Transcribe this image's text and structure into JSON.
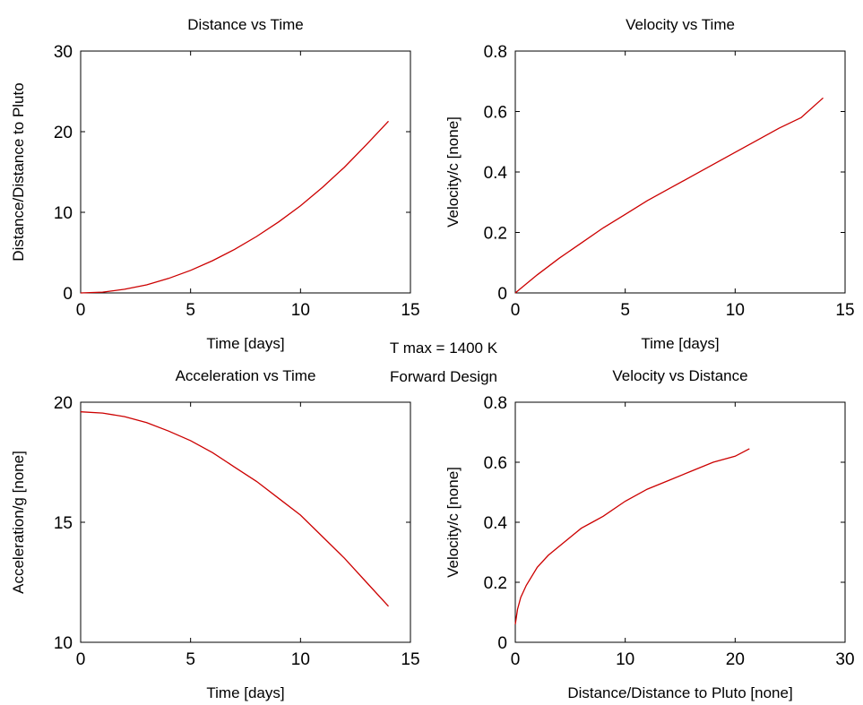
{
  "figure": {
    "suptitle_lines": [
      "T max = 1400 K",
      "Forward Design"
    ],
    "line_color": "#cc0000"
  },
  "chart_data": [
    {
      "type": "line",
      "title": "Distance vs Time",
      "xlabel": "Time [days]",
      "ylabel": "Distance/Distance to Pluto",
      "xlim": [
        0,
        15
      ],
      "ylim": [
        0,
        30
      ],
      "xticks": [
        0,
        5,
        10,
        15
      ],
      "yticks": [
        0,
        10,
        20,
        30
      ],
      "grid": false,
      "x": [
        0,
        1,
        2,
        3,
        4,
        5,
        6,
        7,
        8,
        9,
        10,
        11,
        12,
        13,
        14
      ],
      "y": [
        0,
        0.1,
        0.45,
        1.0,
        1.8,
        2.8,
        4.0,
        5.4,
        7.0,
        8.8,
        10.8,
        13.1,
        15.6,
        18.4,
        21.3
      ]
    },
    {
      "type": "line",
      "title": "Velocity vs Time",
      "xlabel": "Time [days]",
      "ylabel": "Velocity/c [none]",
      "xlim": [
        0,
        15
      ],
      "ylim": [
        0,
        0.8
      ],
      "xticks": [
        0,
        5,
        10,
        15
      ],
      "yticks": [
        0,
        0.2,
        0.4,
        0.6,
        0.8
      ],
      "grid": false,
      "x": [
        0,
        1,
        2,
        3,
        4,
        5,
        6,
        7,
        8,
        9,
        10,
        11,
        12,
        13,
        14
      ],
      "y": [
        0,
        0.06,
        0.115,
        0.165,
        0.215,
        0.26,
        0.305,
        0.345,
        0.385,
        0.425,
        0.465,
        0.505,
        0.545,
        0.58,
        0.645
      ]
    },
    {
      "type": "line",
      "title": "Acceleration vs Time",
      "xlabel": "Time [days]",
      "ylabel": "Acceleration/g [none]",
      "xlim": [
        0,
        15
      ],
      "ylim": [
        10,
        20
      ],
      "xticks": [
        0,
        5,
        10,
        15
      ],
      "yticks": [
        10,
        15,
        20
      ],
      "grid": false,
      "x": [
        0,
        1,
        2,
        3,
        4,
        5,
        6,
        7,
        8,
        9,
        10,
        11,
        12,
        13,
        14
      ],
      "y": [
        19.6,
        19.55,
        19.4,
        19.15,
        18.8,
        18.4,
        17.9,
        17.3,
        16.7,
        16.0,
        15.3,
        14.4,
        13.5,
        12.5,
        11.5
      ]
    },
    {
      "type": "line",
      "title": "Velocity vs Distance",
      "xlabel": "Distance/Distance to Pluto [none]",
      "ylabel": "Velocity/c [none]",
      "xlim": [
        0,
        30
      ],
      "ylim": [
        0,
        0.8
      ],
      "xticks": [
        0,
        10,
        20,
        30
      ],
      "yticks": [
        0,
        0.2,
        0.4,
        0.6,
        0.8
      ],
      "grid": false,
      "x": [
        0,
        0.2,
        0.5,
        1,
        2,
        3,
        4,
        5,
        6,
        7,
        8,
        10,
        12,
        14,
        16,
        18,
        20,
        21.3
      ],
      "y": [
        0.06,
        0.11,
        0.15,
        0.19,
        0.25,
        0.29,
        0.32,
        0.35,
        0.38,
        0.4,
        0.42,
        0.47,
        0.51,
        0.54,
        0.57,
        0.6,
        0.62,
        0.645
      ]
    }
  ]
}
